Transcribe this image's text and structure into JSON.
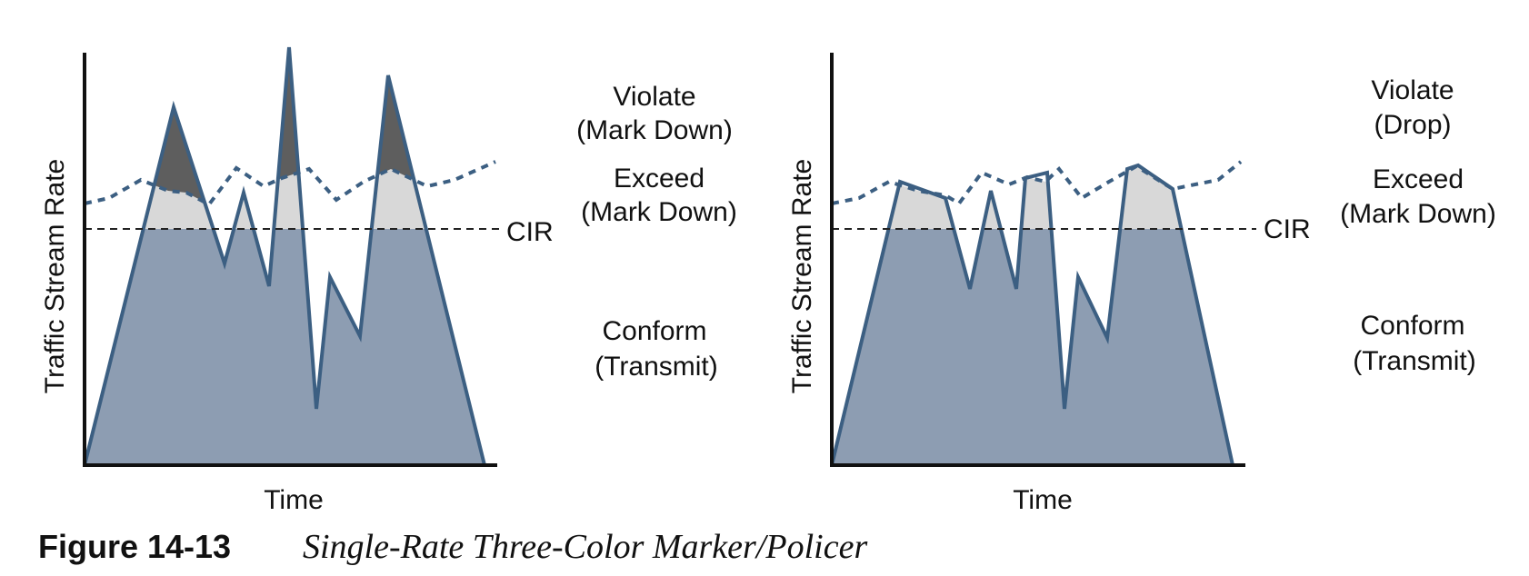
{
  "colors": {
    "conform_fill": "#8d9db2",
    "exceed_fill": "#d8d8d8",
    "violate_fill": "#5e5e5e",
    "outline": "#3c5f82",
    "axis": "#111111",
    "cir_line": "#222222"
  },
  "panels": [
    {
      "y_axis_label": "Traffic Stream Rate",
      "x_axis_label": "Time",
      "cir_label": "CIR",
      "violate_label_1": "Violate",
      "violate_label_2": "(Mark Down)",
      "exceed_label_1": "Exceed",
      "exceed_label_2": "(Mark Down)",
      "conform_label_1": "Conform",
      "conform_label_2": "(Transmit)"
    },
    {
      "y_axis_label": "Traffic Stream Rate",
      "x_axis_label": "Time",
      "cir_label": "CIR",
      "violate_label_1": "Violate",
      "violate_label_2": "(Drop)",
      "exceed_label_1": "Exceed",
      "exceed_label_2": "(Mark Down)",
      "conform_label_1": "Conform",
      "conform_label_2": "(Transmit)"
    }
  ],
  "caption": {
    "number": "Figure 14-13",
    "title": "Single-Rate Three-Color Marker/Policer"
  }
}
